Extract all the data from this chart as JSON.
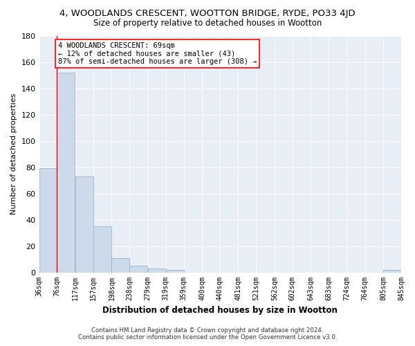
{
  "title": "4, WOODLANDS CRESCENT, WOOTTON BRIDGE, RYDE, PO33 4JD",
  "subtitle": "Size of property relative to detached houses in Wootton",
  "xlabel": "Distribution of detached houses by size in Wootton",
  "ylabel": "Number of detached properties",
  "bar_color": "#ccdaeb",
  "bar_edge_color": "#9ab4cc",
  "background_color": "#e8eef6",
  "grid_color": "#ffffff",
  "bin_edges": [
    36,
    76,
    117,
    157,
    198,
    238,
    279,
    319,
    359,
    400,
    440,
    481,
    521,
    562,
    602,
    643,
    683,
    724,
    764,
    805,
    845
  ],
  "bin_labels": [
    "36sqm",
    "76sqm",
    "117sqm",
    "157sqm",
    "198sqm",
    "238sqm",
    "279sqm",
    "319sqm",
    "359sqm",
    "400sqm",
    "440sqm",
    "481sqm",
    "521sqm",
    "562sqm",
    "602sqm",
    "643sqm",
    "683sqm",
    "724sqm",
    "764sqm",
    "805sqm",
    "845sqm"
  ],
  "bar_heights": [
    79,
    152,
    73,
    35,
    11,
    5,
    3,
    2,
    0,
    0,
    0,
    0,
    0,
    0,
    0,
    0,
    0,
    0,
    0,
    2
  ],
  "ylim": [
    0,
    180
  ],
  "yticks": [
    0,
    20,
    40,
    60,
    80,
    100,
    120,
    140,
    160,
    180
  ],
  "property_label": "4 WOODLANDS CRESCENT: 69sqm",
  "annotation_line1": "← 12% of detached houses are smaller (43)",
  "annotation_line2": "87% of semi-detached houses are larger (308) →",
  "red_line_x": 76,
  "footer_line1": "Contains HM Land Registry data © Crown copyright and database right 2024.",
  "footer_line2": "Contains public sector information licensed under the Open Government Licence v3.0."
}
